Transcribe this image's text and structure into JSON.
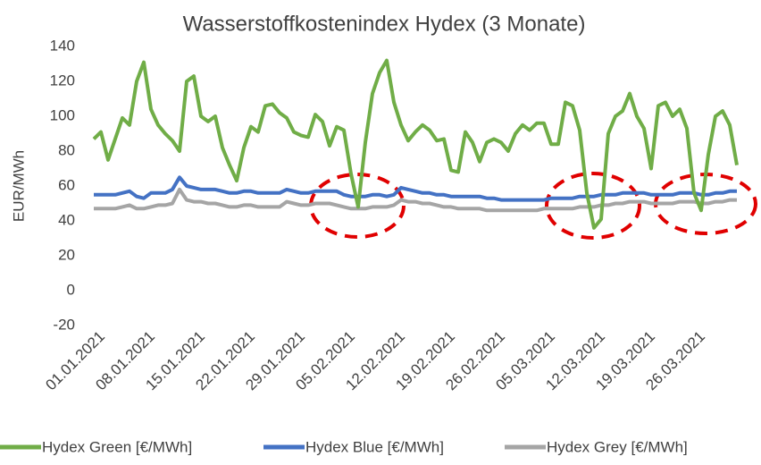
{
  "chart_data": {
    "type": "line",
    "title": "Wasserstoffkostenindex Hydex (3 Monate)",
    "y_label": "EUR/MWh",
    "categories": [
      "01.01.2021",
      null,
      null,
      null,
      null,
      null,
      null,
      "08.01.2021",
      null,
      null,
      null,
      null,
      null,
      null,
      "15.01.2021",
      null,
      null,
      null,
      null,
      null,
      null,
      "22.01.2021",
      null,
      null,
      null,
      null,
      null,
      null,
      "29.01.2021",
      null,
      null,
      null,
      null,
      null,
      null,
      "05.02.2021",
      null,
      null,
      null,
      null,
      null,
      null,
      "12.02.2021",
      null,
      null,
      null,
      null,
      null,
      null,
      "19.02.2021",
      null,
      null,
      null,
      null,
      null,
      null,
      "26.02.2021",
      null,
      null,
      null,
      null,
      null,
      null,
      "05.03.2021",
      null,
      null,
      null,
      null,
      null,
      null,
      "12.03.2021",
      null,
      null,
      null,
      null,
      null,
      null,
      "19.03.2021",
      null,
      null,
      null,
      null,
      null,
      null,
      "26.03.2021",
      null,
      null,
      null,
      null,
      null,
      null
    ],
    "series": [
      {
        "name": "Hydex Green [€/MWh]",
        "color": "#70ad47",
        "values": [
          87,
          91,
          75,
          87,
          99,
          95,
          120,
          131,
          104,
          95,
          90,
          86,
          80,
          120,
          123,
          100,
          97,
          100,
          82,
          72,
          63,
          82,
          94,
          91,
          106,
          107,
          102,
          99,
          91,
          89,
          88,
          101,
          97,
          83,
          94,
          92,
          67,
          48,
          85,
          113,
          125,
          132,
          108,
          95,
          86,
          91,
          95,
          92,
          86,
          87,
          69,
          68,
          91,
          85,
          74,
          85,
          87,
          85,
          80,
          90,
          95,
          92,
          96,
          96,
          84,
          84,
          108,
          106,
          92,
          56,
          36,
          41,
          90,
          100,
          103,
          113,
          100,
          93,
          70,
          106,
          108,
          100,
          104,
          93,
          56,
          46,
          78,
          100,
          103,
          95,
          72
        ]
      },
      {
        "name": "Hydex Blue [€/MWh]",
        "color": "#4472c4",
        "values": [
          55,
          55,
          55,
          55,
          56,
          57,
          54,
          53,
          56,
          56,
          56,
          58,
          65,
          60,
          59,
          58,
          58,
          58,
          57,
          56,
          56,
          57,
          57,
          56,
          56,
          56,
          56,
          58,
          57,
          56,
          56,
          57,
          57,
          57,
          57,
          55,
          54,
          54,
          54,
          55,
          55,
          54,
          55,
          59,
          58,
          57,
          56,
          56,
          55,
          55,
          54,
          54,
          54,
          54,
          54,
          53,
          53,
          52,
          52,
          52,
          52,
          52,
          52,
          52,
          53,
          53,
          53,
          53,
          54,
          54,
          54,
          55,
          55,
          55,
          56,
          56,
          56,
          56,
          55,
          55,
          55,
          55,
          56,
          56,
          56,
          55,
          55,
          56,
          56,
          57,
          57
        ]
      },
      {
        "name": "Hydex Grey [€/MWh]",
        "color": "#a5a5a5",
        "values": [
          47,
          47,
          47,
          47,
          48,
          49,
          47,
          47,
          48,
          49,
          49,
          50,
          58,
          52,
          51,
          51,
          50,
          50,
          49,
          48,
          48,
          49,
          49,
          48,
          48,
          48,
          48,
          51,
          50,
          49,
          49,
          50,
          50,
          50,
          49,
          48,
          47,
          47,
          47,
          48,
          48,
          48,
          49,
          52,
          51,
          51,
          50,
          50,
          49,
          48,
          48,
          47,
          47,
          47,
          47,
          46,
          46,
          46,
          46,
          46,
          46,
          46,
          46,
          47,
          47,
          47,
          47,
          47,
          48,
          48,
          48,
          49,
          49,
          50,
          50,
          51,
          51,
          51,
          50,
          50,
          50,
          50,
          51,
          51,
          51,
          50,
          50,
          51,
          51,
          52,
          52
        ]
      }
    ],
    "ylim": [
      -20,
      140
    ],
    "yticks": [
      -20,
      0,
      20,
      40,
      60,
      80,
      100,
      120,
      140
    ],
    "grid": false,
    "legend": "bottom"
  }
}
